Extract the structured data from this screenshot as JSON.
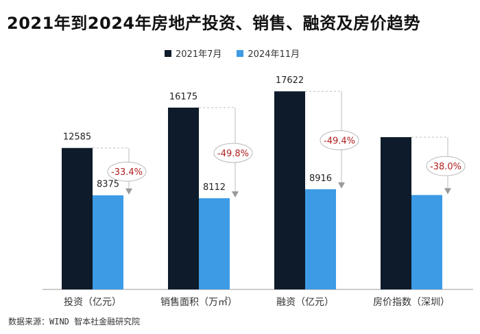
{
  "title": "2021年到2024年房地产投资、销售、融资及房价趋势",
  "source": "数据来源：WIND 智本社金融研究院",
  "colors": {
    "series_2021": "#0d1b2a",
    "series_2024": "#3d9be5",
    "change_text": "#b01c1c",
    "arrow": "#9a9a9a"
  },
  "chart_data": {
    "type": "bar",
    "title": "2021年到2024年房地产投资、销售、融资及房价趋势",
    "categories": [
      "投资（亿元）",
      "销售面积（万㎡）",
      "融资（亿元）",
      "房价指数（深圳）"
    ],
    "series": [
      {
        "name": "2021年7月",
        "values": [
          12585,
          16175,
          17622,
          null
        ],
        "labels": [
          "12585",
          "16175",
          "17622",
          ""
        ]
      },
      {
        "name": "2024年11月",
        "values": [
          8375,
          8112,
          8916,
          null
        ],
        "labels": [
          "8375",
          "8112",
          "8916",
          ""
        ]
      }
    ],
    "house_price_index_relative": {
      "2021年7月": 1.0,
      "2024年11月": 0.62
    },
    "changes": [
      "-33.4%",
      "-49.8%",
      "-49.4%",
      "-38.0%"
    ],
    "ylim": [
      0,
      18000
    ],
    "legend_position": "top-center",
    "grid": false
  }
}
